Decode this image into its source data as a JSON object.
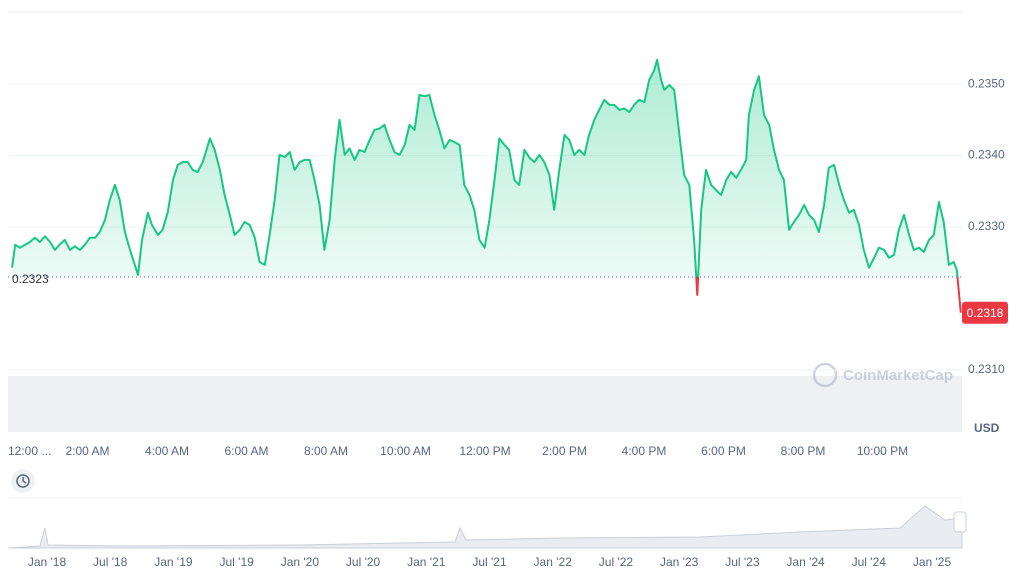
{
  "chart_data": {
    "type": "line",
    "x": [
      0.1,
      0.18,
      0.3,
      0.55,
      0.68,
      0.8,
      0.93,
      1.06,
      1.18,
      1.31,
      1.43,
      1.56,
      1.68,
      1.81,
      1.93,
      2.06,
      2.19,
      2.31,
      2.44,
      2.56,
      2.69,
      2.81,
      2.94,
      3.07,
      3.27,
      3.37,
      3.52,
      3.62,
      3.77,
      3.89,
      4.02,
      4.15,
      4.27,
      4.4,
      4.52,
      4.65,
      4.77,
      4.9,
      5.08,
      5.2,
      5.33,
      5.45,
      5.58,
      5.7,
      5.83,
      5.95,
      6.08,
      6.21,
      6.33,
      6.46,
      6.58,
      6.71,
      6.83,
      6.96,
      7.09,
      7.21,
      7.34,
      7.46,
      7.59,
      7.71,
      7.84,
      7.96,
      8.09,
      8.22,
      8.34,
      8.47,
      8.59,
      8.72,
      8.84,
      8.97,
      9.1,
      9.22,
      9.35,
      9.47,
      9.6,
      9.72,
      9.85,
      9.98,
      10.1,
      10.23,
      10.35,
      10.48,
      10.6,
      10.73,
      10.85,
      10.98,
      11.11,
      11.23,
      11.36,
      11.48,
      11.61,
      11.73,
      11.86,
      11.99,
      12.11,
      12.24,
      12.36,
      12.49,
      12.61,
      12.74,
      12.86,
      12.99,
      13.12,
      13.24,
      13.37,
      13.49,
      13.62,
      13.74,
      13.87,
      14.0,
      14.12,
      14.25,
      14.37,
      14.5,
      14.62,
      14.75,
      14.87,
      15.0,
      15.13,
      15.25,
      15.38,
      15.5,
      15.63,
      15.75,
      15.88,
      16.01,
      16.13,
      16.26,
      16.33,
      16.43,
      16.51,
      16.64,
      16.76,
      16.89,
      17.01,
      17.14,
      17.26,
      17.34,
      17.44,
      17.56,
      17.69,
      17.81,
      17.94,
      18.07,
      18.19,
      18.32,
      18.44,
      18.57,
      18.64,
      18.77,
      18.89,
      19.02,
      19.15,
      19.27,
      19.4,
      19.52,
      19.65,
      19.77,
      19.9,
      20.03,
      20.15,
      20.28,
      20.4,
      20.53,
      20.65,
      20.78,
      20.91,
      21.03,
      21.16,
      21.28,
      21.41,
      21.53,
      21.66,
      21.79,
      21.91,
      22.04,
      22.16,
      22.29,
      22.41,
      22.54,
      22.67,
      22.79,
      22.92,
      23.04,
      23.17,
      23.29,
      23.42,
      23.54,
      23.67,
      23.79,
      23.87,
      23.97
    ],
    "series": [
      {
        "color": "#16c784",
        "values": [
          0.23243,
          0.23275,
          0.23271,
          0.23279,
          0.23285,
          0.23279,
          0.23287,
          0.23279,
          0.23268,
          0.23276,
          0.23282,
          0.23268,
          0.23273,
          0.23268,
          0.23275,
          0.23285,
          0.23285,
          0.23293,
          0.2331,
          0.23338,
          0.23359,
          0.23338,
          0.23293,
          0.23268,
          0.23233,
          0.23282,
          0.2332,
          0.23303,
          0.23289,
          0.23296,
          0.23321,
          0.23366,
          0.23387,
          0.23391,
          0.23391,
          0.2338,
          0.23377,
          0.23391,
          0.23424,
          0.23408,
          0.2338,
          0.23345,
          0.23317,
          0.23289,
          0.23296,
          0.23307,
          0.23303,
          0.23285,
          0.23251,
          0.23247,
          0.23289,
          0.23338,
          0.23401,
          0.23398,
          0.23405,
          0.2338,
          0.23391,
          0.23394,
          0.23394,
          0.23366,
          0.23331,
          0.23268,
          0.2331,
          0.23394,
          0.2345,
          0.23401,
          0.2341,
          0.23394,
          0.23408,
          0.23405,
          0.23422,
          0.23436,
          0.23438,
          0.23443,
          0.23422,
          0.23405,
          0.23401,
          0.23415,
          0.23443,
          0.23436,
          0.23485,
          0.23483,
          0.23485,
          0.23457,
          0.23436,
          0.2341,
          0.23422,
          0.23419,
          0.23415,
          0.23359,
          0.23345,
          0.23324,
          0.23282,
          0.23271,
          0.2331,
          0.23366,
          0.23424,
          0.23415,
          0.23408,
          0.23366,
          0.23359,
          0.23408,
          0.23397,
          0.23391,
          0.23401,
          0.23391,
          0.23373,
          0.23324,
          0.2338,
          0.23429,
          0.23422,
          0.23401,
          0.23408,
          0.23401,
          0.23429,
          0.2345,
          0.23464,
          0.23478,
          0.23471,
          0.23471,
          0.23464,
          0.23466,
          0.23461,
          0.23471,
          0.23478,
          0.23475,
          0.23506,
          0.2352,
          0.23534,
          0.23506,
          0.23492,
          0.23499,
          0.23492,
          0.23429,
          0.23373,
          0.23359,
          0.23282,
          0.23205,
          0.23324,
          0.2338,
          0.23359,
          0.23352,
          0.23345,
          0.23366,
          0.23377,
          0.23369,
          0.2338,
          0.23394,
          0.23457,
          0.23492,
          0.23511,
          0.23457,
          0.23443,
          0.23408,
          0.2338,
          0.23366,
          0.23296,
          0.23307,
          0.23317,
          0.23331,
          0.23317,
          0.2331,
          0.23293,
          0.23331,
          0.23383,
          0.23387,
          0.23359,
          0.23338,
          0.2332,
          0.23324,
          0.23303,
          0.23268,
          0.23243,
          0.23257,
          0.23271,
          0.23268,
          0.23257,
          0.23261,
          0.23296,
          0.23317,
          0.23289,
          0.23268,
          0.23271,
          0.23265,
          0.23282,
          0.23289,
          0.23335,
          0.23307,
          0.23247,
          0.23251,
          0.2324,
          0.2318
        ]
      }
    ],
    "down_color": "#ea3943",
    "xlim": [
      0,
      24
    ],
    "xticks": [
      {
        "value": 0,
        "label": "12:00 ..."
      },
      {
        "value": 2,
        "label": "2:00 AM"
      },
      {
        "value": 4,
        "label": "4:00 AM"
      },
      {
        "value": 6,
        "label": "6:00 AM"
      },
      {
        "value": 8,
        "label": "8:00 AM"
      },
      {
        "value": 10,
        "label": "10:00 AM"
      },
      {
        "value": 12,
        "label": "12:00 PM"
      },
      {
        "value": 14,
        "label": "2:00 PM"
      },
      {
        "value": 16,
        "label": "4:00 PM"
      },
      {
        "value": 18,
        "label": "6:00 PM"
      },
      {
        "value": 20,
        "label": "8:00 PM"
      },
      {
        "value": 22,
        "label": "10:00 PM"
      }
    ],
    "ylim": [
      0.23013,
      0.23601
    ],
    "yticks": [
      {
        "value": 0.231,
        "label": "0.2310"
      },
      {
        "value": 0.233,
        "label": "0.2330"
      },
      {
        "value": 0.234,
        "label": "0.2340"
      },
      {
        "value": 0.235,
        "label": "0.2350"
      }
    ],
    "grid": true,
    "reference_line": 0.2323,
    "last_price": 0.2318,
    "y_unit": "USD",
    "watermark": "CoinMarketCap"
  },
  "navigator": {
    "labels": [
      "Jan '18",
      "Jul '18",
      "Jan '19",
      "Jul '19",
      "Jan '20",
      "Jul '20",
      "Jan '21",
      "Jul '21",
      "Jan '22",
      "Jul '22",
      "Jan '23",
      "Jul '23",
      "Jan '24",
      "Jul '24",
      "Jan '25"
    ]
  }
}
